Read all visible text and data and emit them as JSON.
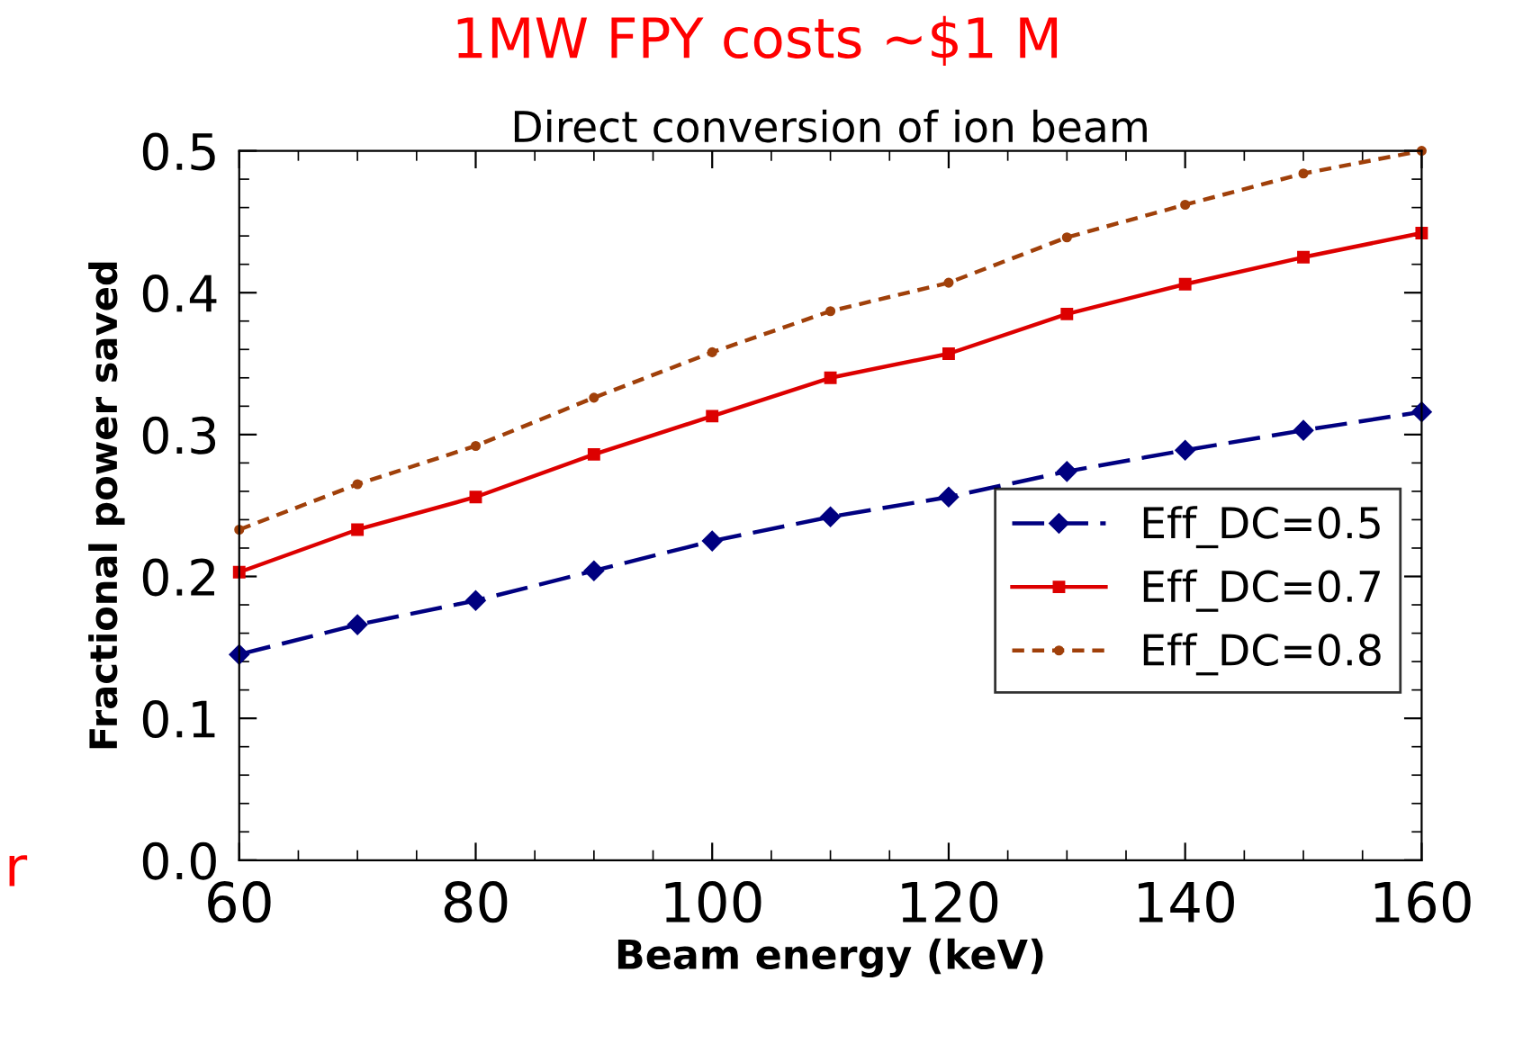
{
  "chart_data": {
    "type": "line",
    "title": "1MW FPY costs ~$1 M",
    "subtitle": "Direct conversion of ion beam",
    "xlabel": "Beam energy (keV)",
    "ylabel": "Fractional power saved",
    "annotations": [
      "r"
    ],
    "x": [
      60,
      70,
      80,
      90,
      100,
      110,
      120,
      130,
      140,
      150,
      160
    ],
    "series": [
      {
        "name": "Eff_DC=0.5",
        "color": "#000080",
        "marker": "diamond",
        "line_style": "dashed",
        "values": [
          0.145,
          0.166,
          0.183,
          0.204,
          0.225,
          0.242,
          0.256,
          0.274,
          0.289,
          0.303,
          0.316
        ]
      },
      {
        "name": "Eff_DC=0.7",
        "color": "#dd0000",
        "marker": "square",
        "line_style": "solid",
        "values": [
          0.203,
          0.233,
          0.256,
          0.286,
          0.313,
          0.34,
          0.357,
          0.385,
          0.406,
          0.425,
          0.442
        ]
      },
      {
        "name": "Eff_DC=0.8",
        "color": "#a0400a",
        "marker": "circle",
        "line_style": "dotted",
        "values": [
          0.233,
          0.265,
          0.292,
          0.326,
          0.358,
          0.387,
          0.407,
          0.439,
          0.462,
          0.484,
          0.5
        ]
      }
    ],
    "xlim": [
      60,
      160
    ],
    "xticks": [
      60,
      80,
      100,
      120,
      140,
      160
    ],
    "ylim": [
      0,
      0.5
    ],
    "yticks": [
      {
        "value": 0,
        "label": "0.0"
      },
      0.1,
      0.2,
      0.3,
      0.4,
      0.5
    ],
    "grid": false,
    "legend": "right"
  }
}
